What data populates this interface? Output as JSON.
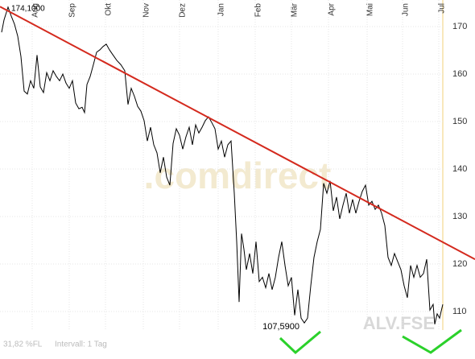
{
  "chart_data": {
    "type": "line",
    "watermark": ".comdirect",
    "symbol": "ALV.FSE",
    "footer_left": "31,82 %FL",
    "footer_interval": "Intervall: 1 Tag",
    "high_label": "174,1000",
    "low_label": "107,5900",
    "xlim": [
      0,
      590
    ],
    "ylim": [
      104.4,
      175.6
    ],
    "xticks": [
      {
        "value": 40,
        "label": "Aug"
      },
      {
        "value": 86,
        "label": "Sep"
      },
      {
        "value": 131,
        "label": "Okt"
      },
      {
        "value": 178,
        "label": "Nov"
      },
      {
        "value": 223,
        "label": "Dez"
      },
      {
        "value": 271,
        "label": "Jan"
      },
      {
        "value": 317,
        "label": "Feb"
      },
      {
        "value": 362,
        "label": "Mär"
      },
      {
        "value": 408,
        "label": "Apr"
      },
      {
        "value": 456,
        "label": "Mai"
      },
      {
        "value": 500,
        "label": "Jun"
      },
      {
        "value": 545,
        "label": "Jul"
      }
    ],
    "yticks": [
      110,
      120,
      130,
      140,
      150,
      160,
      170
    ],
    "grid": true,
    "series": [
      {
        "name": "ALV.FSE",
        "color": "#000000",
        "x": [
          2,
          5,
          10,
          14,
          18,
          22,
          26,
          30,
          34,
          38,
          42,
          46,
          50,
          54,
          58,
          62,
          66,
          70,
          74,
          78,
          82,
          86,
          90,
          94,
          98,
          102,
          105,
          108,
          112,
          116,
          120,
          124,
          128,
          132,
          136,
          140,
          145,
          150,
          155,
          159,
          163,
          167,
          171,
          175,
          179,
          183,
          187,
          191,
          195,
          199,
          203,
          207,
          211,
          215,
          219,
          223,
          227,
          231,
          235,
          239,
          243,
          247,
          251,
          255,
          259,
          263,
          267,
          271,
          275,
          279,
          283,
          287,
          291,
          294,
          297,
          300,
          303,
          306,
          310,
          314,
          318,
          322,
          326,
          330,
          334,
          338,
          342,
          346,
          350,
          354,
          358,
          362,
          366,
          370,
          374,
          378,
          382,
          386,
          390,
          394,
          398,
          402,
          406,
          410,
          414,
          418,
          422,
          426,
          430,
          434,
          438,
          442,
          446,
          450,
          454,
          458,
          462,
          466,
          470,
          474,
          478,
          482,
          486,
          490,
          494,
          498,
          502,
          506,
          510,
          514,
          518,
          522,
          526,
          530,
          534,
          538,
          540,
          543,
          546,
          550
        ],
        "values": [
          168.8,
          171.4,
          174.1,
          172.2,
          170.5,
          168,
          163.7,
          156.4,
          155.8,
          158.6,
          157,
          164,
          157.3,
          156.1,
          160.3,
          158.6,
          160.7,
          159.5,
          158.6,
          160,
          158.1,
          157,
          158.6,
          153.9,
          152.7,
          153,
          151.9,
          157.8,
          159.5,
          162,
          164.6,
          165.1,
          165.8,
          166.3,
          165.1,
          164.1,
          162.9,
          162,
          160.7,
          153.6,
          157,
          155.3,
          153.2,
          152.2,
          150.2,
          145.9,
          148.8,
          145.1,
          143.4,
          139.2,
          142.5,
          138.3,
          136.6,
          145.4,
          148.5,
          147.1,
          144.2,
          146.8,
          148.8,
          145.1,
          149.3,
          147.6,
          148.8,
          150.2,
          151,
          149.8,
          148.5,
          144.2,
          145.9,
          142.5,
          145.1,
          145.9,
          134.9,
          124.7,
          112,
          126.4,
          123.1,
          118.8,
          122.2,
          118,
          124.7,
          116.3,
          117.2,
          115,
          118,
          114.6,
          117.2,
          121.4,
          124.7,
          119.7,
          115.4,
          117.2,
          109.2,
          114.6,
          108.6,
          107.59,
          108.6,
          115.4,
          121.4,
          124.7,
          127.3,
          137,
          134.9,
          137.5,
          131.2,
          134.1,
          129.5,
          132.4,
          134.9,
          130.7,
          133.6,
          130.7,
          133.2,
          135.3,
          136.6,
          132.4,
          133.2,
          131.5,
          132.4,
          130.7,
          128.1,
          121.4,
          119.7,
          122.2,
          120.5,
          118.8,
          115.4,
          112.9,
          119.7,
          117.2,
          119.7,
          117.2,
          118,
          121,
          110.3,
          111.5,
          107.3,
          109.5,
          108.6,
          111.5
        ]
      }
    ],
    "trendline": {
      "color": "#d42a1e",
      "x": [
        0,
        590
      ],
      "values": [
        174.2,
        121
      ]
    }
  }
}
